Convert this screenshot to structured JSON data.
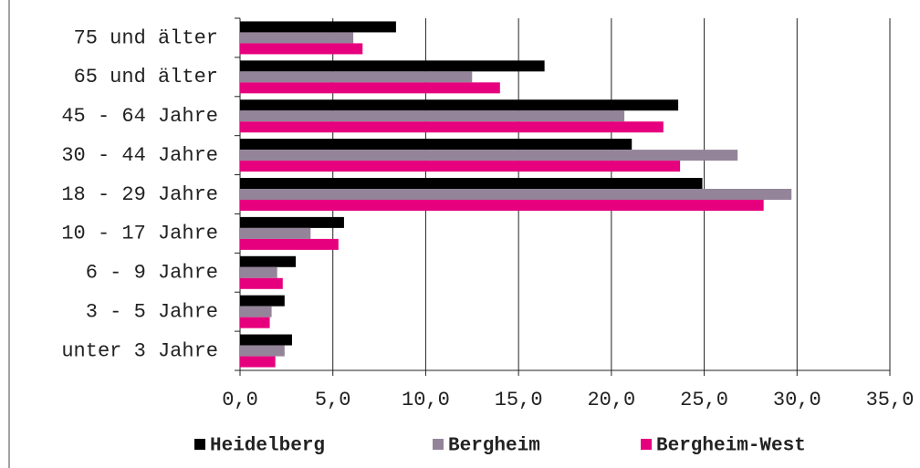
{
  "chart_data": {
    "type": "hbar",
    "categories": [
      "75 und älter",
      "65 und älter",
      "45 - 64 Jahre",
      "30 - 44 Jahre",
      "18 - 29 Jahre",
      "10 - 17 Jahre",
      "6 - 9 Jahre",
      "3 - 5 Jahre",
      "unter 3 Jahre"
    ],
    "series": [
      {
        "name": "Heidelberg",
        "color": "#000000",
        "values": [
          8.4,
          16.4,
          23.6,
          21.1,
          24.9,
          5.6,
          3.0,
          2.4,
          2.8
        ]
      },
      {
        "name": "Bergheim",
        "color": "#948499",
        "values": [
          6.1,
          12.5,
          20.7,
          26.8,
          29.7,
          3.8,
          2.0,
          1.7,
          2.4
        ]
      },
      {
        "name": "Bergheim-West",
        "color": "#e6007e",
        "values": [
          6.6,
          14.0,
          22.8,
          23.7,
          28.2,
          5.3,
          2.3,
          1.6,
          1.9
        ]
      }
    ],
    "xlim": [
      0,
      35
    ],
    "xticks": [
      {
        "value": 0,
        "label": "0,0"
      },
      {
        "value": 5,
        "label": "5,0"
      },
      {
        "value": 10,
        "label": "10,0"
      },
      {
        "value": 15,
        "label": "15,0"
      },
      {
        "value": 20,
        "label": "20,0"
      },
      {
        "value": 25,
        "label": "25,0"
      },
      {
        "value": 30,
        "label": "30,0"
      },
      {
        "value": 35,
        "label": "35,0"
      }
    ],
    "grid": true,
    "legend": "bottom"
  }
}
